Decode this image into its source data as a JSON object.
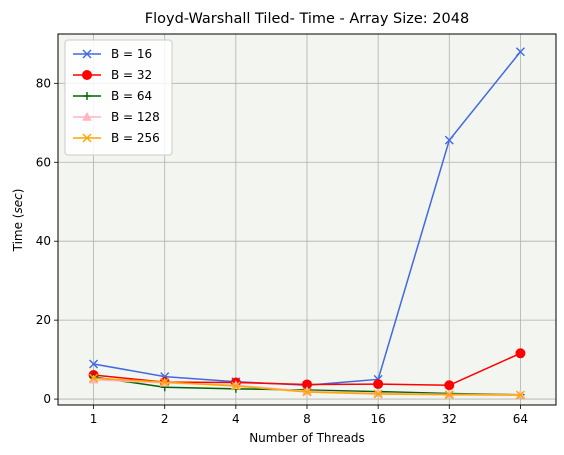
{
  "chart_data": {
    "type": "line",
    "title": "Floyd-Warshall Tiled- Time - Array Size: 2048",
    "xlabel": "Number of Threads",
    "ylabel": "Time ($sec$)",
    "ylabel_prefix": "Time (",
    "ylabel_unit": "sec",
    "ylabel_suffix": ")",
    "x": [
      "1",
      "2",
      "4",
      "8",
      "16",
      "32",
      "64"
    ],
    "ylim": [
      -1.5,
      92.5
    ],
    "yticks": [
      0,
      20,
      40,
      60,
      80
    ],
    "grid": true,
    "legend_position": "top-left",
    "plot_background": "#f2f5f0",
    "series": [
      {
        "name": "B = 16",
        "color": "#4169e1",
        "marker": "x",
        "values": [
          8.9,
          5.7,
          4.4,
          3.5,
          5.0,
          65.6,
          88.0
        ]
      },
      {
        "name": "B = 32",
        "color": "#ff0000",
        "marker": "circle",
        "values": [
          6.1,
          4.3,
          4.2,
          3.7,
          3.8,
          3.5,
          11.6
        ]
      },
      {
        "name": "B = 64",
        "color": "#006400",
        "marker": "plus",
        "values": [
          5.6,
          3.0,
          2.6,
          2.3,
          1.9,
          1.4,
          1.1
        ]
      },
      {
        "name": "B = 128",
        "color": "#ffb6c1",
        "marker": "triangle",
        "values": [
          4.9,
          4.1,
          3.5,
          2.0,
          1.5,
          1.2,
          1.1
        ]
      },
      {
        "name": "B = 256",
        "color": "#ffa500",
        "marker": "x",
        "values": [
          5.3,
          4.3,
          3.3,
          1.8,
          1.3,
          1.1,
          1.0
        ]
      }
    ]
  }
}
